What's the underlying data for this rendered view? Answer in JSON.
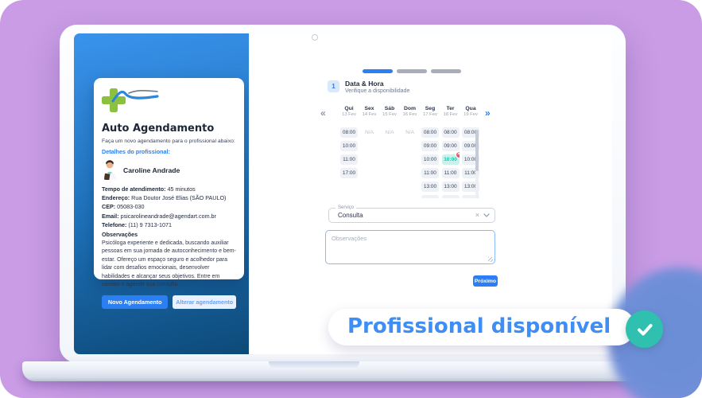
{
  "theme": {
    "accent_blue": "#2b7ff2",
    "purple_background": "#c99ce5",
    "panel_gradient_top": "#3a93ec",
    "panel_gradient_bottom": "#0d4a78",
    "teal_check": "#2fc0b0",
    "selected_slot_bg": "#c8f2ea",
    "selected_slot_text": "#28beae",
    "remove_badge_red": "#f4516c"
  },
  "card": {
    "logo_icon": "clinic-cross-wave-logo",
    "title": "Auto Agendamento",
    "subtitle": "Faça um novo agendamento para o profissional abaixo:",
    "details_link": "Detalhes do profissional:",
    "professional": {
      "avatar_icon": "doctor-avatar",
      "name": "Caroline Andrade",
      "fields": [
        {
          "label": "Tempo de atendimento:",
          "value": "45 minutos"
        },
        {
          "label": "Endereço:",
          "value": "Rua Doutor José Elias (SÃO PAULO)"
        },
        {
          "label": "CEP:",
          "value": "05083-030"
        },
        {
          "label": "Email:",
          "value": "psicarolineandrade@agendart.com.br"
        },
        {
          "label": "Telefone:",
          "value": "(11) 9 7313-1071"
        }
      ],
      "notes_title": "Observações",
      "notes": "Psicóloga experiente e dedicada, buscando auxiliar pessoas em sua jornada de autoconhecimento e bem-estar. Ofereço um espaço seguro e acolhedor para lidar com desafios emocionais, desenvolver habilidades e alcançar seus objetivos. Entre em contato e agende sua consulta."
    },
    "buttons": {
      "primary": "Novo Agendamento",
      "secondary": "Alterar agendamento"
    }
  },
  "wizard": {
    "progress": [
      "active",
      "inactive",
      "inactive"
    ],
    "step_number": "1",
    "step_title": "Data & Hora",
    "step_subtitle": "Verifique a disponibilidade"
  },
  "calendar": {
    "prev_icon": "«",
    "next_icon": "»",
    "days": [
      {
        "day": "Qui",
        "date": "13 Fev",
        "slots": [
          "08:00",
          "10:00",
          "11:00",
          "17:00"
        ]
      },
      {
        "day": "Sex",
        "date": "14 Fev",
        "slots": [
          "N/A"
        ]
      },
      {
        "day": "Sáb",
        "date": "15 Fev",
        "slots": [
          "N/A"
        ]
      },
      {
        "day": "Dom",
        "date": "16 Fev",
        "slots": [
          "N/A"
        ]
      },
      {
        "day": "Seg",
        "date": "17 Fev",
        "slots": [
          "08:00",
          "09:00",
          "10:00",
          "11:00",
          "13:00"
        ],
        "partial": true
      },
      {
        "day": "Ter",
        "date": "18 Fev",
        "slots": [
          "08:00",
          "09:00",
          "10:00",
          "11:00",
          "13:00"
        ],
        "selected": "10:00",
        "partial": true
      },
      {
        "day": "Qua",
        "date": "19 Fev",
        "slots": [
          "08:00",
          "09:00",
          "10:00",
          "11:00",
          "13:00"
        ],
        "partial": true
      }
    ],
    "remove_badge": "×"
  },
  "form": {
    "service_label": "Serviço",
    "service_value": "Consulta",
    "clear_icon": "×",
    "notes_placeholder": "Observações",
    "next_button": "Próximo"
  },
  "banner": {
    "text": "Profissional disponível",
    "icon": "check"
  }
}
